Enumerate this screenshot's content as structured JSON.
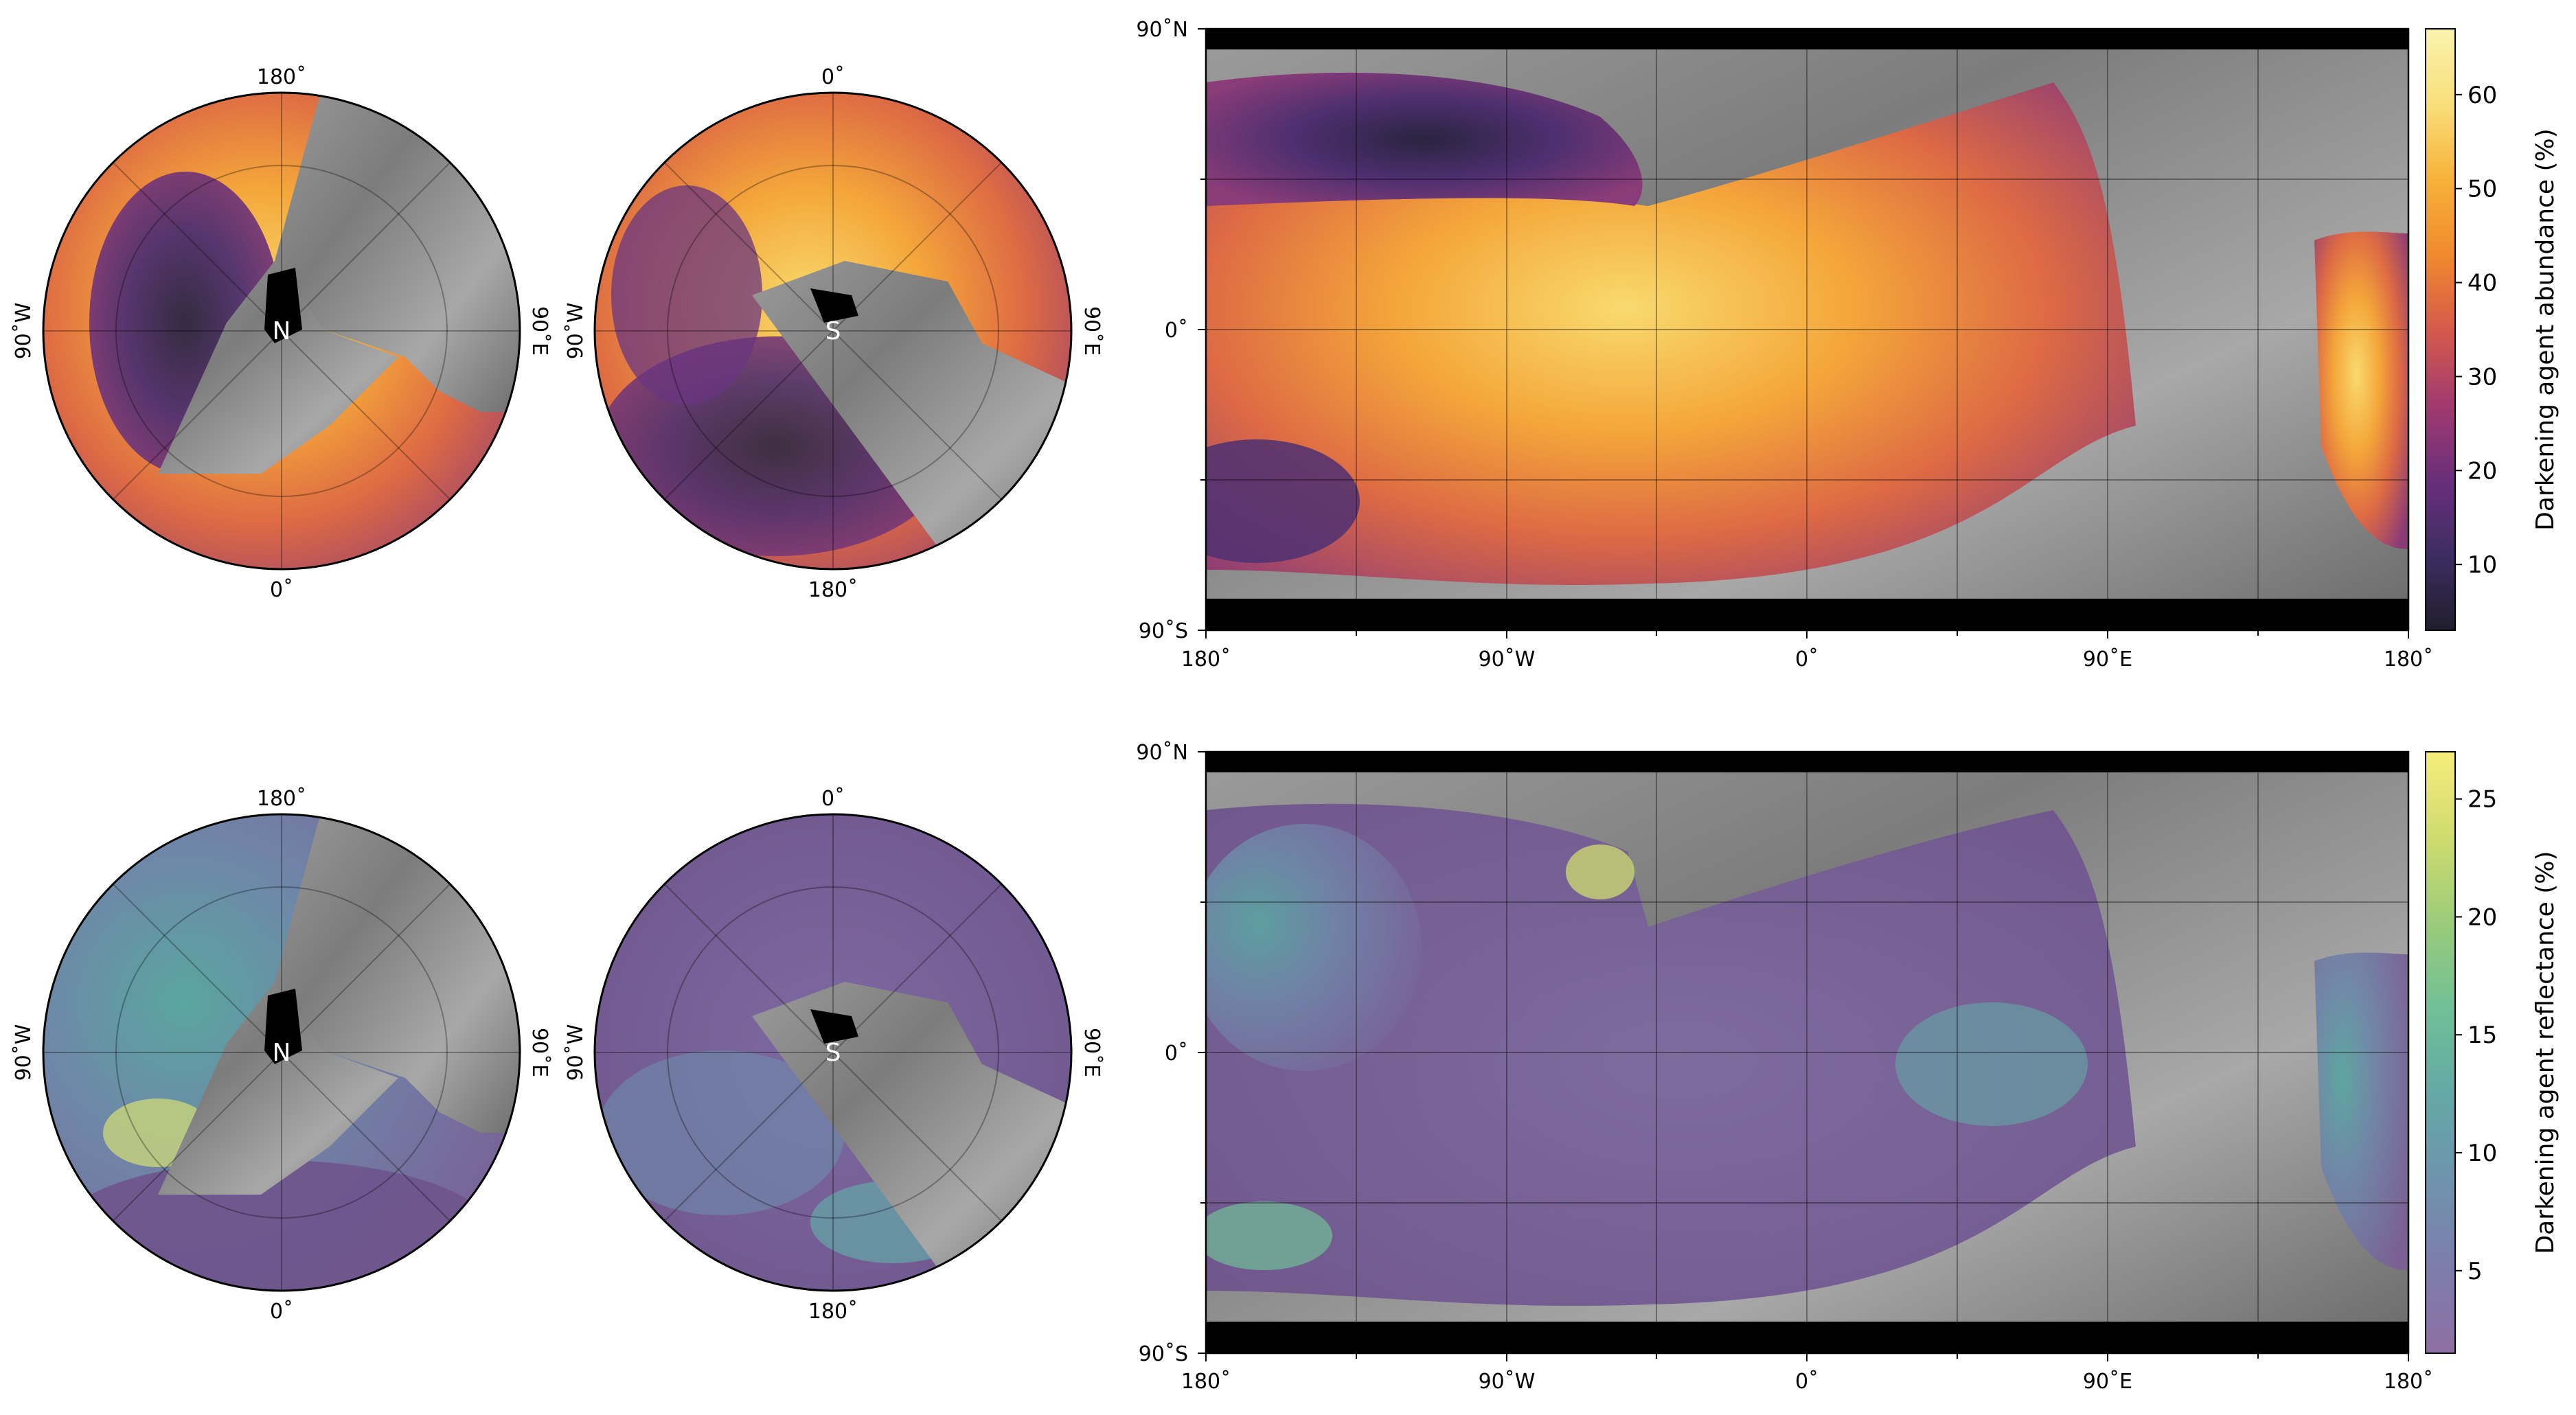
{
  "chart_data": [
    {
      "type": "heatmap",
      "projection": "polar-stereographic",
      "hemisphere": "north",
      "pole_label": "N",
      "lon_labels": {
        "top": "180˚",
        "bottom": "0˚",
        "left": "90˚W",
        "right": "90˚E"
      },
      "quantity": "Darkening agent abundance (%)",
      "colormap": "inferno"
    },
    {
      "type": "heatmap",
      "projection": "polar-stereographic",
      "hemisphere": "south",
      "pole_label": "S",
      "lon_labels": {
        "top": "0˚",
        "bottom": "180˚",
        "left": "90˚W",
        "right": "90˚E"
      },
      "quantity": "Darkening agent abundance (%)",
      "colormap": "inferno"
    },
    {
      "type": "heatmap",
      "projection": "equirectangular",
      "xlim": [
        -180,
        180
      ],
      "ylim": [
        -90,
        90
      ],
      "x_tick_labels": [
        "180˚",
        "90˚W",
        "0˚",
        "90˚E",
        "180˚"
      ],
      "y_tick_labels": [
        "90˚N",
        "0˚",
        "90˚S"
      ],
      "grid": true,
      "colorbar": {
        "label": "Darkening agent abundance (%)",
        "ticks": [
          10,
          20,
          30,
          40,
          50,
          60
        ],
        "range": [
          3,
          67
        ],
        "colors": [
          "#1f1e2c",
          "#3d2d63",
          "#6a2f7a",
          "#a23a6f",
          "#d65a4b",
          "#f08a2d",
          "#f7b23a",
          "#f8df7a",
          "#fbf3ad"
        ]
      }
    },
    {
      "type": "heatmap",
      "projection": "polar-stereographic",
      "hemisphere": "north",
      "pole_label": "N",
      "lon_labels": {
        "top": "180˚",
        "bottom": "0˚",
        "left": "90˚W",
        "right": "90˚E"
      },
      "quantity": "Darkening agent reflectance (%)",
      "colormap": "viridis"
    },
    {
      "type": "heatmap",
      "projection": "polar-stereographic",
      "hemisphere": "south",
      "pole_label": "S",
      "lon_labels": {
        "top": "0˚",
        "bottom": "180˚",
        "left": "90˚W",
        "right": "90˚E"
      },
      "quantity": "Darkening agent reflectance (%)",
      "colormap": "viridis"
    },
    {
      "type": "heatmap",
      "projection": "equirectangular",
      "xlim": [
        -180,
        180
      ],
      "ylim": [
        -90,
        90
      ],
      "x_tick_labels": [
        "180˚",
        "90˚W",
        "0˚",
        "90˚E",
        "180˚"
      ],
      "y_tick_labels": [
        "90˚N",
        "0˚",
        "90˚S"
      ],
      "grid": true,
      "colorbar": {
        "label": "Darkening agent reflectance (%)",
        "ticks": [
          5,
          10,
          15,
          20,
          25
        ],
        "range": [
          1.5,
          27
        ],
        "colors": [
          "#8e6fa3",
          "#7d7dab",
          "#6f93ad",
          "#64a8a6",
          "#70bf97",
          "#9acb7a",
          "#cfdc6e",
          "#f6ec7a"
        ]
      }
    }
  ]
}
